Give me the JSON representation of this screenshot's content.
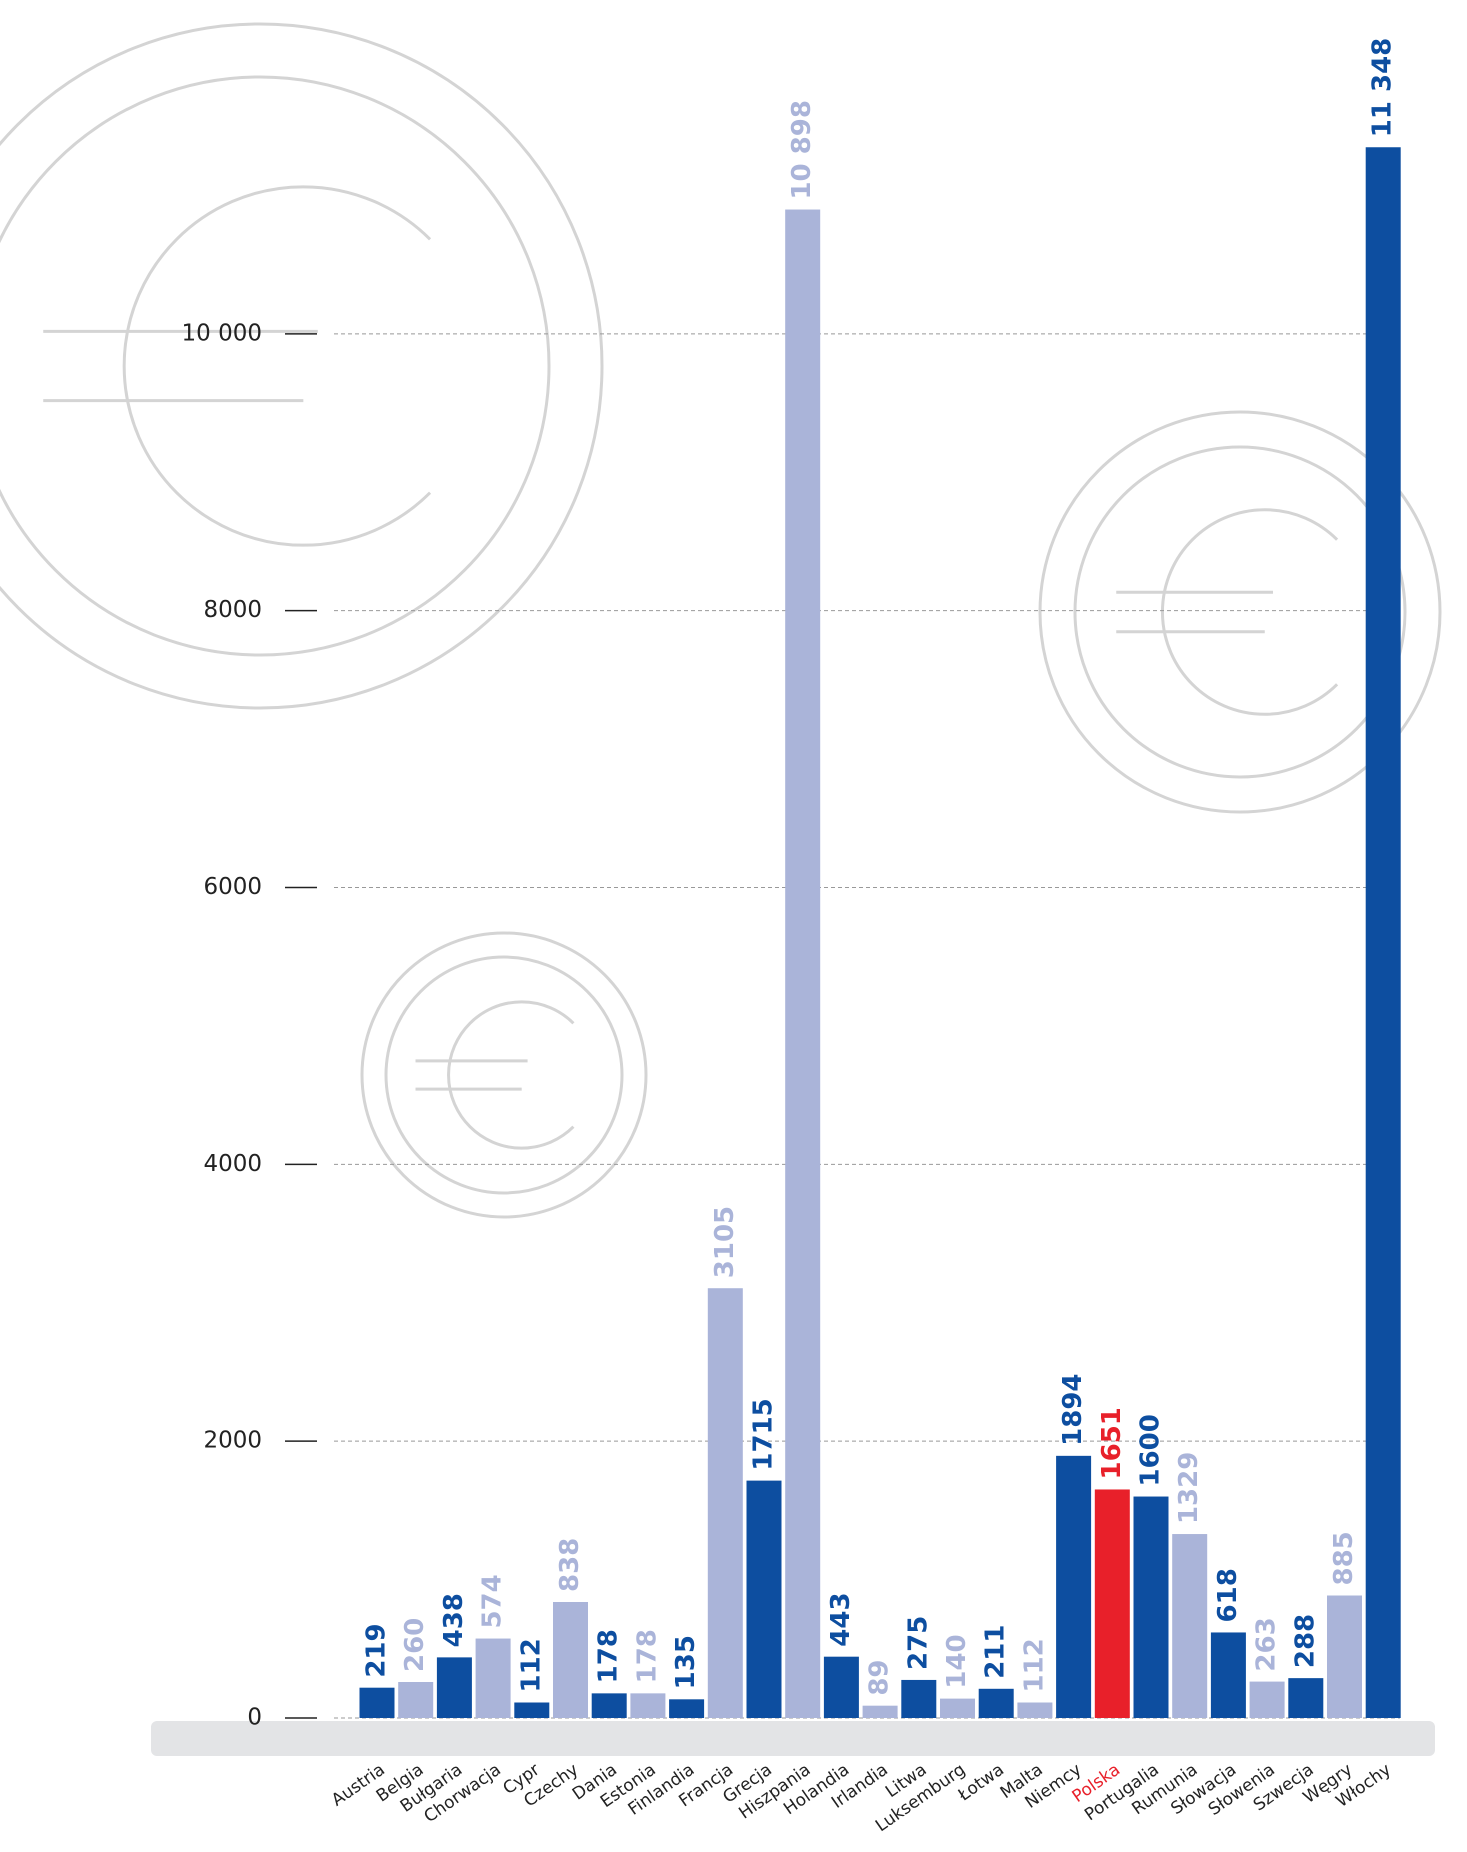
{
  "chart_data": {
    "type": "bar",
    "categories": [
      "Austria",
      "Belgia",
      "Bułgaria",
      "Chorwacja",
      "Cypr",
      "Czechy",
      "Dania",
      "Estonia",
      "Finlandia",
      "Francja",
      "Grecja",
      "Hiszpania",
      "Holandia",
      "Irlandia",
      "Litwa",
      "Luksemburg",
      "Łotwa",
      "Malta",
      "Niemcy",
      "Polska",
      "Portugalia",
      "Rumunia",
      "Słowacja",
      "Słowenia",
      "Szwecja",
      "Węgry",
      "Włochy"
    ],
    "values": [
      219,
      260,
      438,
      574,
      112,
      838,
      178,
      178,
      135,
      3105,
      1715,
      10898,
      443,
      89,
      275,
      140,
      211,
      112,
      1894,
      1651,
      1600,
      1329,
      618,
      263,
      288,
      885,
      11348
    ],
    "value_labels": [
      "219",
      "260",
      "438",
      "574",
      "112",
      "838",
      "178",
      "178",
      "135",
      "3105",
      "1715",
      "10 898",
      "443",
      "89",
      "275",
      "140",
      "211",
      "112",
      "1894",
      "1651",
      "1600",
      "1329",
      "618",
      "263",
      "288",
      "885",
      "11 348"
    ],
    "colors": [
      "#0d4ea0",
      "#aab4d9",
      "#0d4ea0",
      "#aab4d9",
      "#0d4ea0",
      "#aab4d9",
      "#0d4ea0",
      "#aab4d9",
      "#0d4ea0",
      "#aab4d9",
      "#0d4ea0",
      "#aab4d9",
      "#0d4ea0",
      "#aab4d9",
      "#0d4ea0",
      "#aab4d9",
      "#0d4ea0",
      "#aab4d9",
      "#0d4ea0",
      "#e8202a",
      "#0d4ea0",
      "#aab4d9",
      "#0d4ea0",
      "#aab4d9",
      "#0d4ea0",
      "#aab4d9",
      "#0d4ea0"
    ],
    "highlight_color": "#e8202a",
    "ylim": [
      0,
      12000
    ],
    "yticks": [
      0,
      2000,
      4000,
      6000,
      8000,
      {
        "value": 10000,
        "label": "10 000"
      }
    ],
    "grid": true
  }
}
